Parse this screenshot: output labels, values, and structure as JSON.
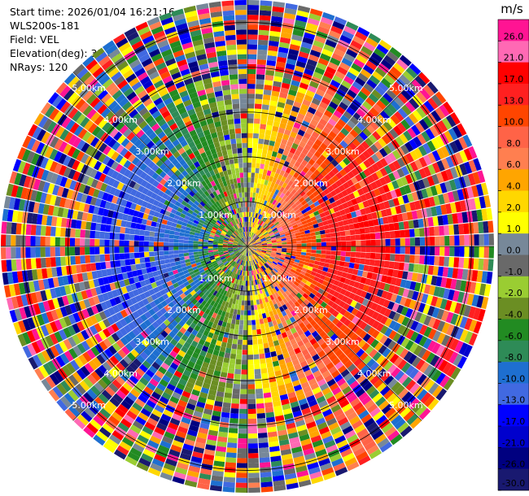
{
  "header": {
    "start_time": "Start time: 2026/01/04 16:21:16",
    "site": "WLS200s-181",
    "field": "Field: VEL",
    "elevation": "Elevation(deg): 35.00",
    "nrays": "NRays: 120"
  },
  "chart_data": {
    "type": "heatmap",
    "projection": "polar-ppi",
    "nrays": 120,
    "max_range_km": 5.5,
    "range_rings_km": [
      1,
      2,
      3,
      4,
      5
    ],
    "ring_labels": [
      "1.00km",
      "2.00km",
      "3.00km",
      "4.00km",
      "5.00km"
    ],
    "colorbar": {
      "unit": "m/s",
      "ticks": [
        "26.0",
        "21.0",
        "17.0",
        "13.0",
        "10.0",
        "8.0",
        "6.0",
        "4.0",
        "2.0",
        "1.0",
        "0.0",
        "-1.0",
        "-2.0",
        "-4.0",
        "-6.0",
        "-8.0",
        "-10.0",
        "-13.0",
        "-17.0",
        "-21.0",
        "-26.0",
        "-30.0"
      ],
      "colors": [
        "#ff1493",
        "#ff69b4",
        "#ff0000",
        "#ff2020",
        "#ff4500",
        "#ff6347",
        "#ff7f50",
        "#ffa500",
        "#ffd700",
        "#ffff00",
        "#778899",
        "#696969",
        "#9acd32",
        "#6b8e23",
        "#228b22",
        "#2e8b57",
        "#1e6fd0",
        "#4169e1",
        "#0000ff",
        "#0000cd",
        "#000080",
        "#191970"
      ]
    },
    "field_pattern": {
      "receding_max_mps": 17,
      "receding_direction": "east",
      "approaching_min_mps": -13,
      "approaching_direction": "west",
      "noise_beyond_km": 3.5
    }
  }
}
